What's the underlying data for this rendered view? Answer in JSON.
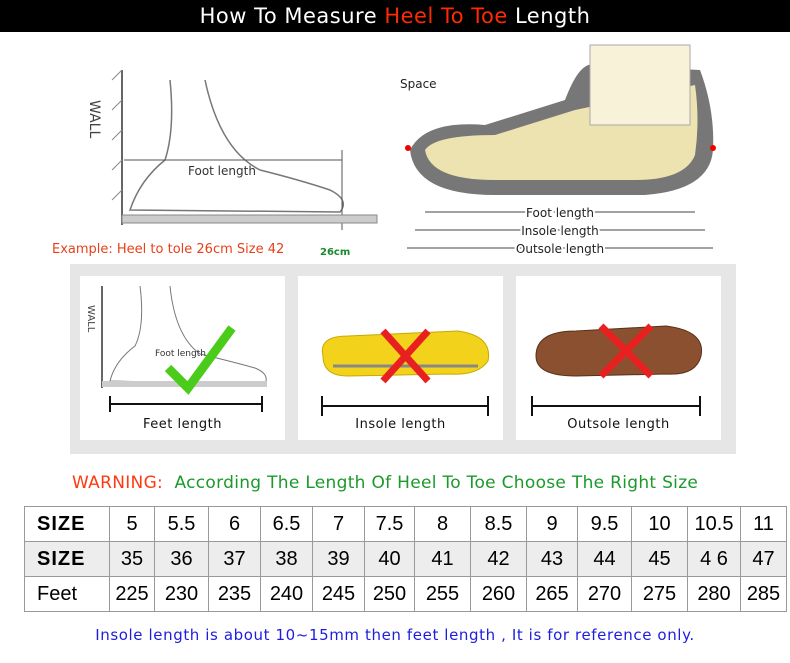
{
  "header": {
    "part1": "How To Measure ",
    "highlight": "Heel To Toe",
    "part2": " Length"
  },
  "diagram_left": {
    "wall": "WALL",
    "foot_length": "Foot length",
    "example": "Example: Heel to tole 26cm Size 42",
    "cm": "26cm"
  },
  "diagram_right": {
    "space": "Space",
    "foot_length": "Foot length",
    "insole_length": "Insole length",
    "outsole_length": "Outsole length"
  },
  "cards": [
    {
      "caption": "Feet length",
      "wall": "WALL",
      "foot_length": "Foot length",
      "mark": "check"
    },
    {
      "caption": "Insole length",
      "mark": "cross"
    },
    {
      "caption": "Outsole length",
      "mark": "cross"
    }
  ],
  "warning": {
    "label": "WARNING:",
    "text": "According The Length Of Heel To Toe Choose The Right Size"
  },
  "table": {
    "rows": [
      {
        "header": "SIZE",
        "cells": [
          "5",
          "5.5",
          "6",
          "6.5",
          "7",
          "7.5",
          "8",
          "8.5",
          "9",
          "9.5",
          "10",
          "10.5",
          "11"
        ]
      },
      {
        "header": "SIZE",
        "cells": [
          "35",
          "36",
          "37",
          "38",
          "39",
          "40",
          "41",
          "42",
          "43",
          "44",
          "45",
          "4 6",
          "47"
        ]
      },
      {
        "header": "Feet",
        "cells": [
          "225",
          "230",
          "235",
          "240",
          "245",
          "250",
          "255",
          "260",
          "265",
          "270",
          "275",
          "280",
          "285"
        ]
      }
    ]
  },
  "footer": "Insole length is about 10~15mm then feet length , It is for reference only.",
  "colors": {
    "accent_red": "#ff2a00",
    "green": "#1a9a2a",
    "blue": "#1d1de0"
  }
}
